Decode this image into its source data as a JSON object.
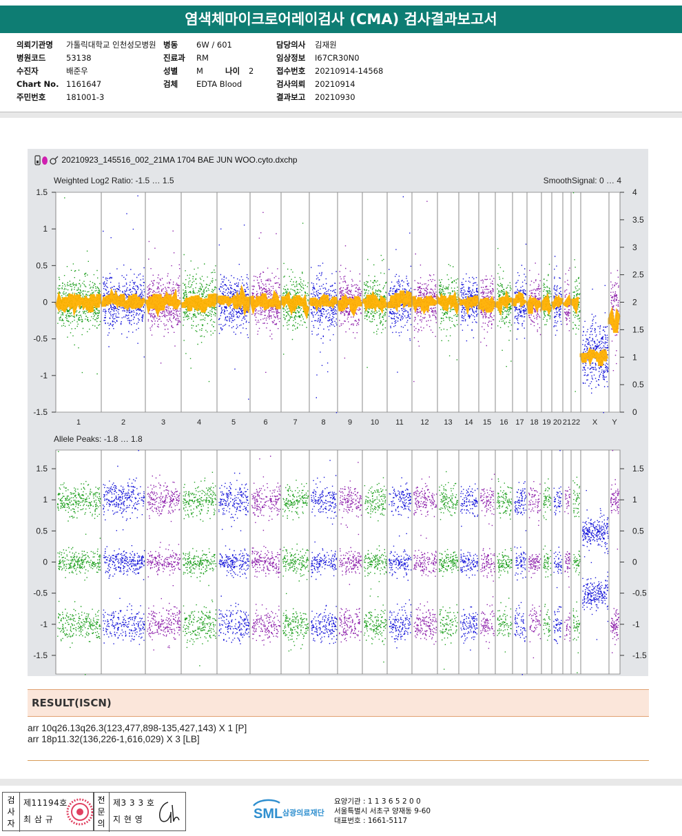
{
  "report": {
    "title": "염색체마이크로어레이검사 (CMA) 검사결과보고서"
  },
  "patient_info": {
    "col1": [
      {
        "label": "의뢰기관명",
        "value": "가톨릭대학교 인천성모병원"
      },
      {
        "label": "병원코드",
        "value": "53138"
      },
      {
        "label": "수진자",
        "value": "배준우"
      },
      {
        "label": "Chart No.",
        "value": "1161647"
      },
      {
        "label": "주민번호",
        "value": "181001-3"
      }
    ],
    "col2": [
      {
        "label": "병동",
        "value": "6W / 601"
      },
      {
        "label": "진료과",
        "value": "RM"
      },
      {
        "label": "성별",
        "value": "M"
      },
      {
        "label": "검체",
        "value": "EDTA Blood"
      }
    ],
    "age": {
      "label": "나이",
      "value": "2"
    },
    "col3": [
      {
        "label": "담당의사",
        "value": "김재원"
      },
      {
        "label": "임상정보",
        "value": "I67CR30N0"
      },
      {
        "label": "접수번호",
        "value": "20210914-14568"
      },
      {
        "label": "검사의뢰",
        "value": "20210914"
      },
      {
        "label": "결과보고",
        "value": "20210930"
      }
    ]
  },
  "chart_data": {
    "type": "scatter",
    "filename": "20210923_145516_002_21MA 1704 BAE JUN WOO.cyto.dxchp",
    "chromosomes": [
      "1",
      "2",
      "3",
      "4",
      "5",
      "6",
      "7",
      "8",
      "9",
      "10",
      "11",
      "12",
      "13",
      "14",
      "15",
      "16",
      "17",
      "18",
      "19",
      "20",
      "21",
      "22",
      "X",
      "Y"
    ],
    "chromosome_colors": [
      "#1a9e1a",
      "#1010d8",
      "#8a1aa8",
      "#1a9e1a",
      "#1010d8",
      "#8a1aa8",
      "#1a9e1a",
      "#1010d8",
      "#8a1aa8",
      "#1a9e1a",
      "#1010d8",
      "#8a1aa8",
      "#1a9e1a",
      "#1010d8",
      "#8a1aa8",
      "#1a9e1a",
      "#1010d8",
      "#8a1aa8",
      "#1a9e1a",
      "#1010d8",
      "#8a1aa8",
      "#1a9e1a",
      "#1010d8",
      "#8a1aa8"
    ],
    "smooth_color": "#ffb000",
    "top_panel": {
      "title": "Weighted Log2 Ratio: -1.5 … 1.5",
      "right_title": "SmoothSignal: 0 … 4",
      "ylim": [
        -1.5,
        1.5
      ],
      "y_ticks": [
        "1.5",
        "1",
        "0.5",
        "0",
        "-0.5",
        "-1",
        "-1.5"
      ],
      "y2lim": [
        0,
        4
      ],
      "y2_ticks": [
        "4",
        "3.5",
        "3",
        "2.5",
        "2",
        "1.5",
        "1",
        "0.5",
        "0"
      ],
      "autosome_log2_mean": 0,
      "autosome_smooth": 2,
      "x_log2_mean": -0.7,
      "x_smooth": 1,
      "y_log2_mean": -0.1
    },
    "bottom_panel": {
      "title": "Allele Peaks: -1.8 … 1.8",
      "ylim": [
        -1.8,
        1.8
      ],
      "y_ticks": [
        "1.5",
        "1",
        "0.5",
        "0",
        "-0.5",
        "-1",
        "-1.5"
      ],
      "autosome_peaks": [
        1,
        0,
        -1
      ],
      "x_peaks": [
        0.5,
        -0.5
      ]
    }
  },
  "result": {
    "heading": "RESULT(ISCN)",
    "lines": [
      "arr 10q26.13q26.3(123,477,898-135,427,143) X 1 [P]",
      "arr 18p11.32(136,226-1,616,029) X 3 [LB]"
    ]
  },
  "footer": {
    "signer1_role": "검사자",
    "signer1_no": "제11194호",
    "signer1_name": "최 삼 규",
    "signer2_role": "전문의",
    "signer2_no": "제3 3 3 호",
    "signer2_name": "지 현 영",
    "org_logo": "SML",
    "org_name": "삼광의료재단",
    "lab_lines": [
      "요양기관 : 1 1 3 6 5 2 0 0",
      "서울특별시 서초구 양재동 9-60",
      "대표번호 : 1661-5117"
    ]
  }
}
